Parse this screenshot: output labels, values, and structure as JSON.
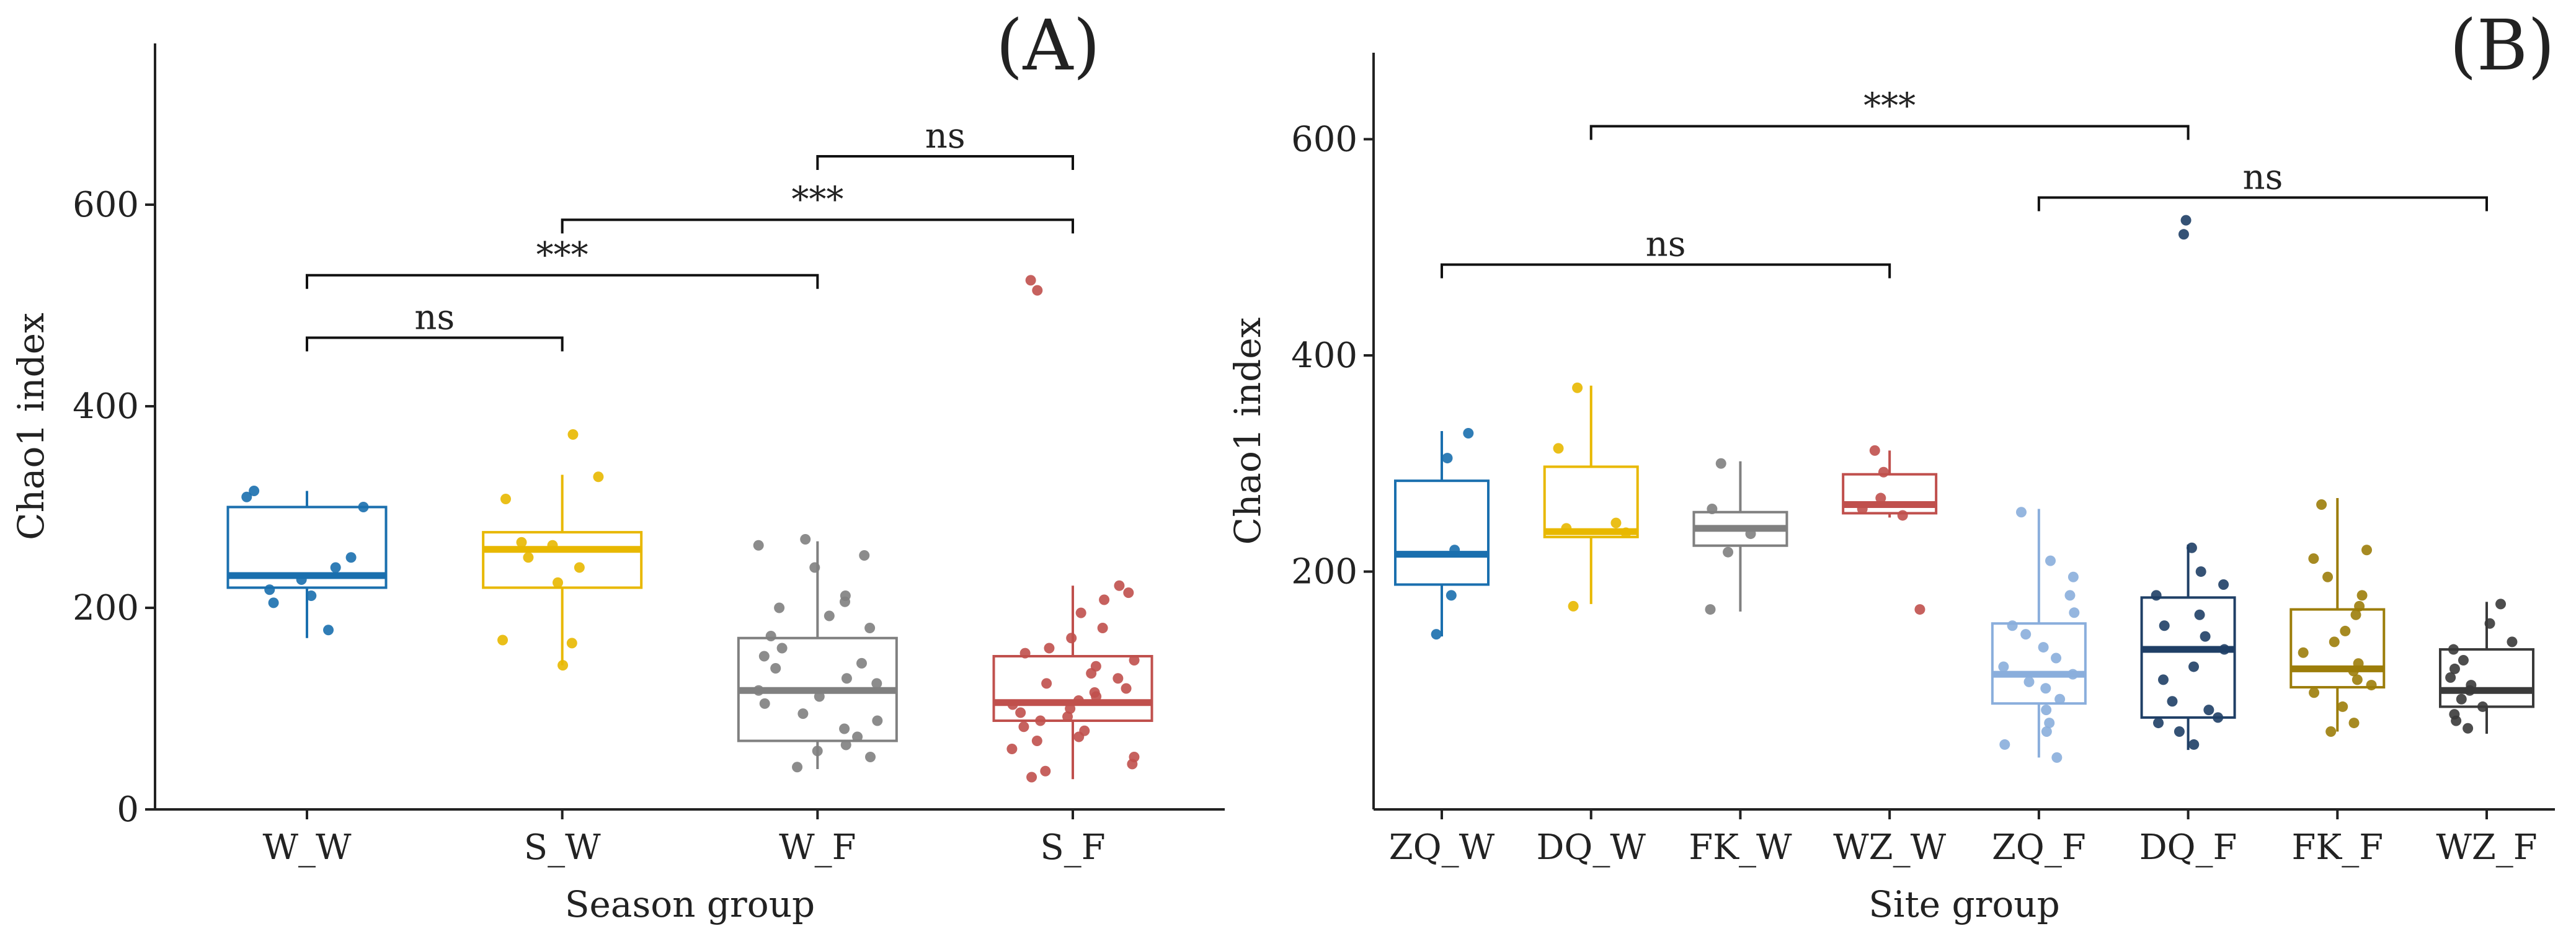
{
  "chart_data": [
    {
      "type": "box",
      "panel_label": "(A)",
      "xlabel": "Season group",
      "ylabel": "Chao1 index",
      "ylim": [
        0,
        760
      ],
      "yticks": [
        0,
        200,
        400,
        600
      ],
      "categories": [
        "W_W",
        "S_W",
        "W_F",
        "S_F"
      ],
      "colors": [
        "#1a6fae",
        "#e8b800",
        "#808080",
        "#c0504d"
      ],
      "boxes": [
        {
          "q1": 220,
          "median": 232,
          "q3": 300,
          "whisker_low": 170,
          "whisker_high": 316
        },
        {
          "q1": 220,
          "median": 258,
          "q3": 275,
          "whisker_low": 143,
          "whisker_high": 332
        },
        {
          "q1": 68,
          "median": 118,
          "q3": 170,
          "whisker_low": 40,
          "whisker_high": 266
        },
        {
          "q1": 88,
          "median": 106,
          "q3": 152,
          "whisker_low": 30,
          "whisker_high": 222
        }
      ],
      "points": [
        [
          178,
          205,
          212,
          218,
          228,
          240,
          250,
          300,
          310,
          316
        ],
        [
          143,
          165,
          168,
          225,
          240,
          250,
          262,
          265,
          308,
          330,
          372
        ],
        [
          42,
          52,
          58,
          64,
          72,
          80,
          88,
          95,
          105,
          112,
          118,
          125,
          130,
          140,
          145,
          152,
          160,
          172,
          180,
          192,
          200,
          206,
          212,
          240,
          252,
          262,
          268
        ],
        [
          32,
          38,
          45,
          52,
          60,
          68,
          72,
          78,
          82,
          88,
          92,
          96,
          100,
          104,
          108,
          112,
          116,
          120,
          125,
          130,
          135,
          142,
          148,
          155,
          160,
          170,
          180,
          195,
          208,
          215,
          222,
          515,
          525
        ]
      ],
      "comparisons": [
        {
          "from": 0,
          "to": 1,
          "y": 468,
          "label": "ns"
        },
        {
          "from": 0,
          "to": 2,
          "y": 530,
          "label": "***"
        },
        {
          "from": 1,
          "to": 3,
          "y": 585,
          "label": "***"
        },
        {
          "from": 2,
          "to": 3,
          "y": 648,
          "label": "ns"
        }
      ]
    },
    {
      "type": "box",
      "panel_label": "(B)",
      "xlabel": "Site group",
      "ylabel": "Chao1 index",
      "ylim": [
        -20,
        680
      ],
      "yticks": [
        200,
        400,
        600
      ],
      "categories": [
        "ZQ_W",
        "DQ_W",
        "FK_W",
        "WZ_W",
        "ZQ_F",
        "DQ_F",
        "FK_F",
        "WZ_F"
      ],
      "colors": [
        "#1a6fae",
        "#e8b800",
        "#808080",
        "#c0504d",
        "#8aaedc",
        "#1f3f66",
        "#9c7d0a",
        "#3a3a3a"
      ],
      "boxes": [
        {
          "q1": 188,
          "median": 216,
          "q3": 284,
          "whisker_low": 140,
          "whisker_high": 330
        },
        {
          "q1": 232,
          "median": 237,
          "q3": 297,
          "whisker_low": 170,
          "whisker_high": 372
        },
        {
          "q1": 224,
          "median": 240,
          "q3": 255,
          "whisker_low": 163,
          "whisker_high": 302
        },
        {
          "q1": 254,
          "median": 262,
          "q3": 290,
          "whisker_low": 250,
          "whisker_high": 312
        },
        {
          "q1": 78,
          "median": 105,
          "q3": 152,
          "whisker_low": 28,
          "whisker_high": 258
        },
        {
          "q1": 65,
          "median": 128,
          "q3": 176,
          "whisker_low": 35,
          "whisker_high": 225
        },
        {
          "q1": 93,
          "median": 110,
          "q3": 165,
          "whisker_low": 52,
          "whisker_high": 268
        },
        {
          "q1": 75,
          "median": 90,
          "q3": 128,
          "whisker_low": 50,
          "whisker_high": 172
        }
      ],
      "points": [
        [
          142,
          178,
          220,
          305,
          328
        ],
        [
          168,
          236,
          240,
          245,
          314,
          370
        ],
        [
          165,
          218,
          235,
          258,
          300
        ],
        [
          165,
          252,
          258,
          268,
          292,
          312
        ],
        [
          28,
          40,
          52,
          60,
          72,
          82,
          92,
          98,
          105,
          112,
          120,
          130,
          142,
          150,
          162,
          178,
          195,
          210,
          255
        ],
        [
          40,
          52,
          60,
          65,
          72,
          80,
          100,
          112,
          128,
          140,
          150,
          160,
          178,
          188,
          200,
          222,
          512,
          525
        ],
        [
          52,
          60,
          75,
          88,
          95,
          100,
          108,
          115,
          125,
          135,
          145,
          160,
          168,
          178,
          195,
          212,
          220,
          262
        ],
        [
          55,
          62,
          68,
          75,
          82,
          90,
          95,
          102,
          110,
          118,
          128,
          135,
          152,
          170
        ]
      ],
      "comparisons": [
        {
          "from": 0,
          "to": 3,
          "y": 484,
          "label": "ns"
        },
        {
          "from": 1,
          "to": 5,
          "y": 612,
          "label": "***"
        },
        {
          "from": 4,
          "to": 7,
          "y": 546,
          "label": "ns"
        }
      ]
    }
  ]
}
